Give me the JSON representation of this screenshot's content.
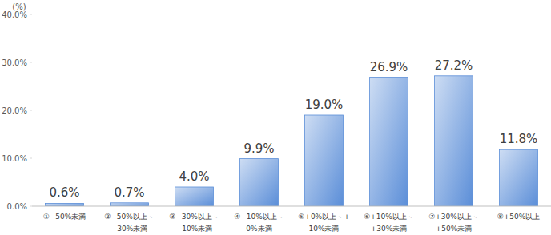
{
  "chart_data": {
    "type": "bar",
    "y_label": "(%)",
    "categories": [
      "①−50%未満",
      "②−50%以上～\n−30%未満",
      "③−30%以上～\n−10%未満",
      "④−10%以上～\n0%未満",
      "⑤+0%以上～+\n10%未満",
      "⑥+10%以上～\n+30%未満",
      "⑦+30%以上～\n+50%未満",
      "⑧+50%以上"
    ],
    "values": [
      0.6,
      0.7,
      4.0,
      9.9,
      19.0,
      26.9,
      27.2,
      11.8
    ],
    "value_labels": [
      "0.6%",
      "0.7%",
      "4.0%",
      "9.9%",
      "19.0%",
      "26.9%",
      "27.2%",
      "11.8%"
    ],
    "color": "#5b8ed8",
    "ylim": [
      0,
      40
    ],
    "yticks": [
      {
        "value": 0,
        "label": "0.0%"
      },
      {
        "value": 10,
        "label": "10.0%"
      },
      {
        "value": 20,
        "label": "20.0%"
      },
      {
        "value": 30,
        "label": "30.0%"
      },
      {
        "value": 40,
        "label": "40.0%"
      }
    ],
    "grid": false,
    "data_labels": true
  }
}
